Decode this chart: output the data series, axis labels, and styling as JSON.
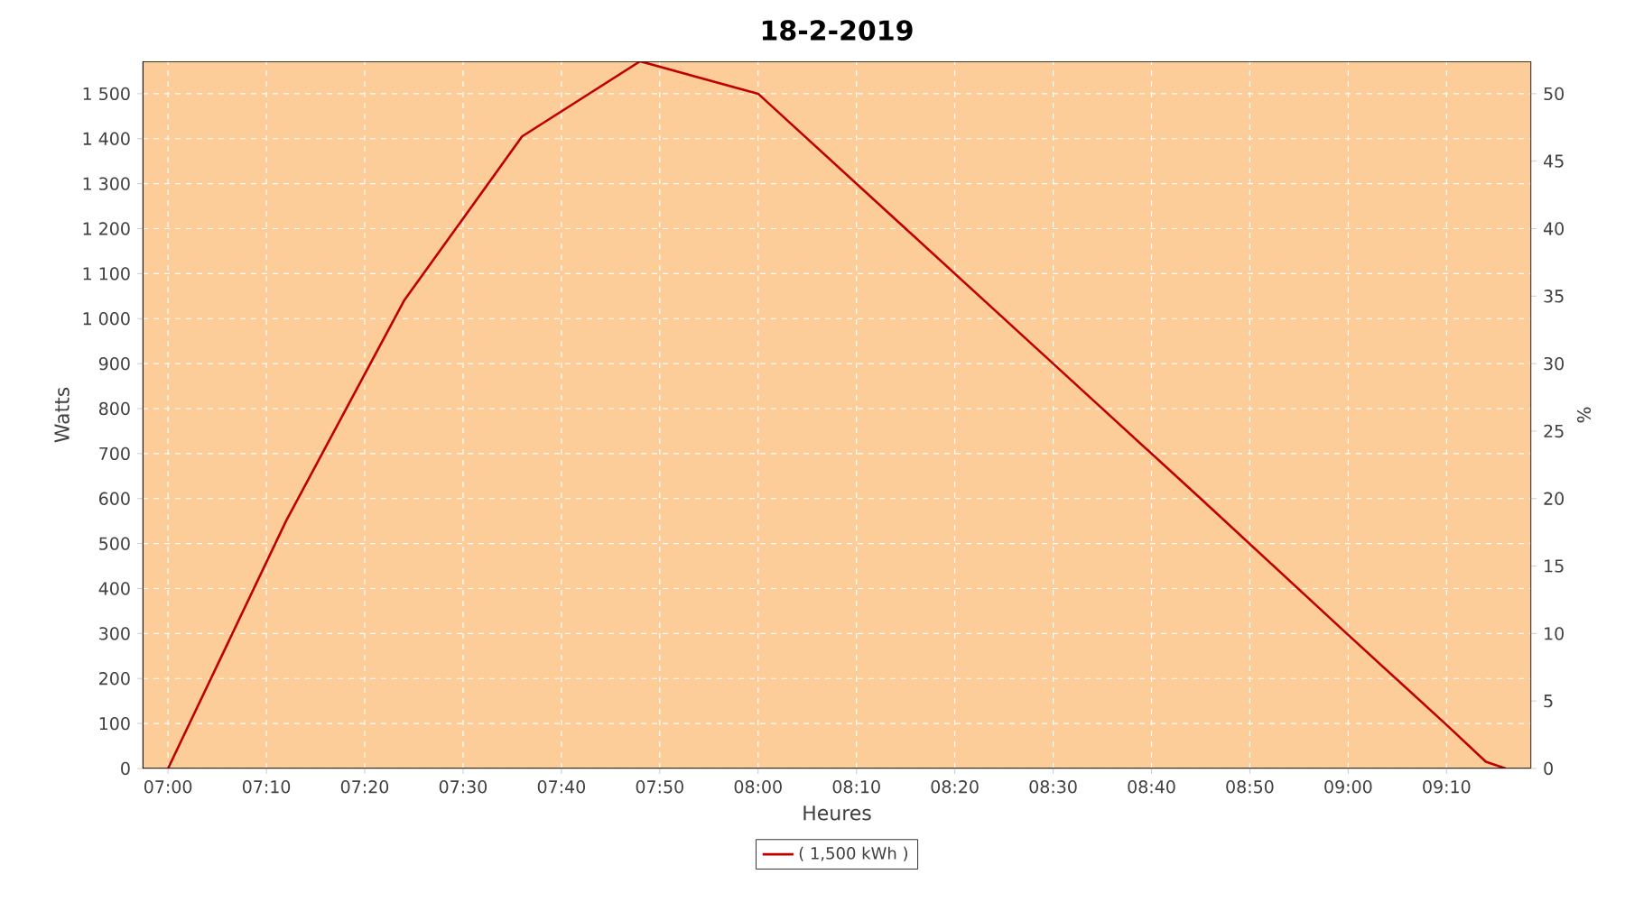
{
  "chart_data": {
    "type": "line",
    "title": "18-2-2019",
    "xlabel": "Heures",
    "ylabel": "Watts",
    "y2label": "%",
    "x": [
      7.0,
      7.2,
      7.4,
      7.6,
      7.8,
      8.0,
      8.25,
      8.5,
      8.75,
      9.0,
      9.1667,
      9.2333,
      9.2667
    ],
    "series": [
      {
        "name": "( 1,500 kWh )",
        "color": "#c00000",
        "values": [
          0,
          550,
          1040,
          1405,
          1572,
          1500,
          1200,
          900,
          600,
          297,
          97,
          15,
          0
        ]
      }
    ],
    "xlim": [
      6.957,
      9.31
    ],
    "ylim": [
      0,
      1572
    ],
    "y2lim": [
      0,
      52.4
    ],
    "xticks": [
      {
        "value": 7.0,
        "label": "07:00"
      },
      {
        "value": 7.1667,
        "label": "07:10"
      },
      {
        "value": 7.3333,
        "label": "07:20"
      },
      {
        "value": 7.5,
        "label": "07:30"
      },
      {
        "value": 7.6667,
        "label": "07:40"
      },
      {
        "value": 7.8333,
        "label": "07:50"
      },
      {
        "value": 8.0,
        "label": "08:00"
      },
      {
        "value": 8.1667,
        "label": "08:10"
      },
      {
        "value": 8.3333,
        "label": "08:20"
      },
      {
        "value": 8.5,
        "label": "08:30"
      },
      {
        "value": 8.6667,
        "label": "08:40"
      },
      {
        "value": 8.8333,
        "label": "08:50"
      },
      {
        "value": 9.0,
        "label": "09:00"
      },
      {
        "value": 9.1667,
        "label": "09:10"
      }
    ],
    "yticks": [
      0,
      100,
      200,
      300,
      400,
      500,
      600,
      700,
      800,
      900,
      {
        "value": 1000,
        "label": "1 000"
      },
      {
        "value": 1100,
        "label": "1 100"
      },
      {
        "value": 1200,
        "label": "1 200"
      },
      {
        "value": 1300,
        "label": "1 300"
      },
      {
        "value": 1400,
        "label": "1 400"
      },
      {
        "value": 1500,
        "label": "1 500"
      }
    ],
    "y2ticks": [
      0,
      5,
      10,
      15,
      20,
      25,
      30,
      35,
      40,
      45,
      50
    ],
    "grid": true,
    "legend": "bottom",
    "marker": "none",
    "line_style": "solid"
  }
}
